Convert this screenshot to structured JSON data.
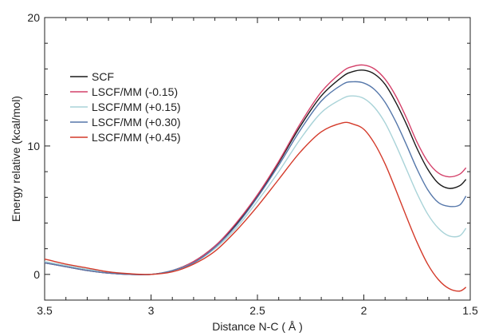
{
  "chart_data": {
    "type": "line",
    "title": "",
    "xlabel": "Distance N-C ( Å )",
    "ylabel": "Energy relative (kcal/mol)",
    "xlim": [
      3.5,
      1.5
    ],
    "ylim": [
      -2,
      20
    ],
    "x_ticks": [
      3.5,
      3,
      2.5,
      2,
      1.5
    ],
    "x_tick_labels": [
      "3.5",
      "3",
      "2.5",
      "2",
      "1.5"
    ],
    "y_ticks": [
      0,
      10,
      20
    ],
    "y_tick_labels": [
      "0",
      "10",
      "20"
    ],
    "x_reversed": true,
    "grid": false,
    "legend_position": "upper-left",
    "x": [
      3.5,
      3.4,
      3.3,
      3.2,
      3.1,
      3.0,
      2.9,
      2.8,
      2.7,
      2.6,
      2.5,
      2.4,
      2.3,
      2.2,
      2.1,
      2.05,
      2.0,
      1.95,
      1.9,
      1.85,
      1.8,
      1.75,
      1.7,
      1.65,
      1.6,
      1.55,
      1.52
    ],
    "series": [
      {
        "name": "SCF",
        "color": "#1a1a1a",
        "values": [
          0.9,
          0.6,
          0.3,
          0.1,
          0.0,
          0.0,
          0.3,
          1.0,
          2.2,
          3.9,
          6.1,
          8.7,
          11.5,
          13.9,
          15.4,
          15.8,
          15.9,
          15.6,
          14.8,
          13.4,
          11.7,
          9.8,
          8.2,
          7.1,
          6.7,
          6.9,
          7.4
        ]
      },
      {
        "name": "LSCF/MM (-0.15)",
        "color": "#d4416a",
        "values": [
          0.9,
          0.6,
          0.3,
          0.1,
          0.0,
          0.0,
          0.3,
          1.0,
          2.2,
          4.0,
          6.2,
          8.8,
          11.7,
          14.2,
          15.8,
          16.2,
          16.3,
          16.0,
          15.2,
          13.9,
          12.2,
          10.3,
          8.8,
          7.9,
          7.6,
          7.8,
          8.3
        ]
      },
      {
        "name": "LSCF/MM (+0.15)",
        "color": "#a9d3d8",
        "values": [
          1.0,
          0.7,
          0.4,
          0.2,
          0.05,
          0.0,
          0.3,
          0.9,
          2.0,
          3.6,
          5.7,
          8.0,
          10.5,
          12.6,
          13.7,
          13.9,
          13.7,
          13.0,
          11.8,
          10.1,
          8.2,
          6.3,
          4.7,
          3.6,
          3.0,
          3.0,
          3.6
        ]
      },
      {
        "name": "LSCF/MM (+0.30)",
        "color": "#5577aa",
        "values": [
          0.9,
          0.6,
          0.3,
          0.1,
          0.0,
          0.0,
          0.3,
          0.9,
          2.1,
          3.8,
          6.0,
          8.5,
          11.2,
          13.5,
          14.8,
          15.0,
          14.9,
          14.4,
          13.4,
          11.9,
          10.1,
          8.2,
          6.6,
          5.6,
          5.3,
          5.4,
          6.1
        ]
      },
      {
        "name": "LSCF/MM (+0.45)",
        "color": "#d43a2a",
        "values": [
          1.2,
          0.8,
          0.5,
          0.2,
          0.05,
          0.0,
          0.2,
          0.8,
          1.8,
          3.4,
          5.3,
          7.4,
          9.5,
          11.1,
          11.8,
          11.7,
          11.3,
          10.2,
          8.6,
          6.6,
          4.5,
          2.5,
          0.8,
          -0.4,
          -1.1,
          -1.3,
          -1.0
        ]
      }
    ]
  }
}
